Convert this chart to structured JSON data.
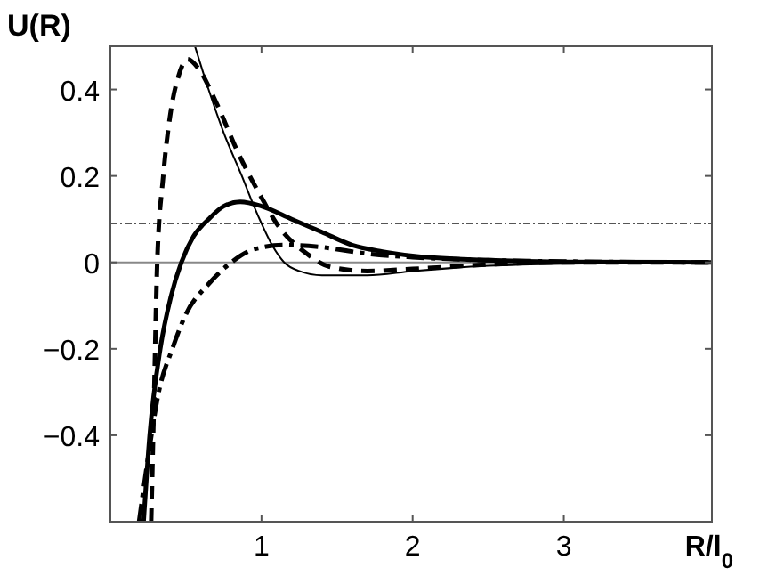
{
  "chart_data": {
    "type": "line",
    "xlabel": "R/l$_{0}$",
    "ylabel": "U(R)",
    "xlim": [
      0,
      3.98
    ],
    "ylim": [
      -0.6,
      0.5
    ],
    "xticks": [
      1,
      2,
      3
    ],
    "yticks": [
      -0.4,
      -0.2,
      0,
      0.2,
      0.4
    ],
    "grid": false,
    "marker": "none",
    "series": [
      {
        "color": "#000000",
        "line_style": "solid",
        "x": [
          0.56,
          0.65,
          0.75,
          0.87,
          0.95,
          1.0,
          1.07,
          1.15,
          1.25,
          1.4,
          1.7,
          2.0,
          2.5,
          3,
          3.98
        ],
        "values": [
          0.5,
          0.4,
          0.3,
          0.2,
          0.13,
          0.09,
          0.04,
          0.0,
          -0.02,
          -0.03,
          -0.03,
          -0.02,
          -0.008,
          -0.003,
          0
        ]
      },
      {
        "color": "#000000",
        "line_style": "dashed",
        "x": [
          0.27,
          0.29,
          0.31,
          0.35,
          0.4,
          0.45,
          0.51,
          0.58,
          0.7,
          0.85,
          1.0,
          1.1,
          1.3,
          1.45,
          1.7,
          2.0,
          2.5,
          3,
          3.98
        ],
        "values": [
          -0.6,
          -0.3,
          0,
          0.2,
          0.35,
          0.43,
          0.47,
          0.45,
          0.37,
          0.25,
          0.15,
          0.09,
          0.02,
          -0.01,
          -0.02,
          -0.015,
          -0.005,
          0,
          0
        ]
      },
      {
        "color": "#000000",
        "line_style": "solid",
        "x": [
          0.22,
          0.26,
          0.33,
          0.4,
          0.47,
          0.55,
          0.65,
          0.75,
          0.86,
          1.0,
          1.2,
          1.4,
          1.6,
          1.8,
          2.0,
          2.5,
          3,
          3.98
        ],
        "values": [
          -0.6,
          -0.4,
          -0.2,
          -0.08,
          0,
          0.06,
          0.1,
          0.13,
          0.14,
          0.13,
          0.1,
          0.07,
          0.04,
          0.025,
          0.015,
          0.005,
          0.001,
          0
        ]
      },
      {
        "color": "#000000",
        "line_style": "dashdot",
        "x": [
          0.19,
          0.25,
          0.32,
          0.41,
          0.5,
          0.65,
          0.8,
          0.95,
          1.15,
          1.4,
          1.7,
          2.0,
          2.5,
          3,
          3.98
        ],
        "values": [
          -0.6,
          -0.45,
          -0.3,
          -0.2,
          -0.12,
          -0.05,
          0,
          0.03,
          0.04,
          0.035,
          0.02,
          0.012,
          0.005,
          0.002,
          0
        ]
      }
    ],
    "ref_lines": [
      {
        "axis": "y",
        "value": 0,
        "color": "#888888",
        "line_style": "solid"
      },
      {
        "axis": "y",
        "value": 0.09,
        "color": "#555555",
        "line_style": "dashdot"
      }
    ]
  }
}
